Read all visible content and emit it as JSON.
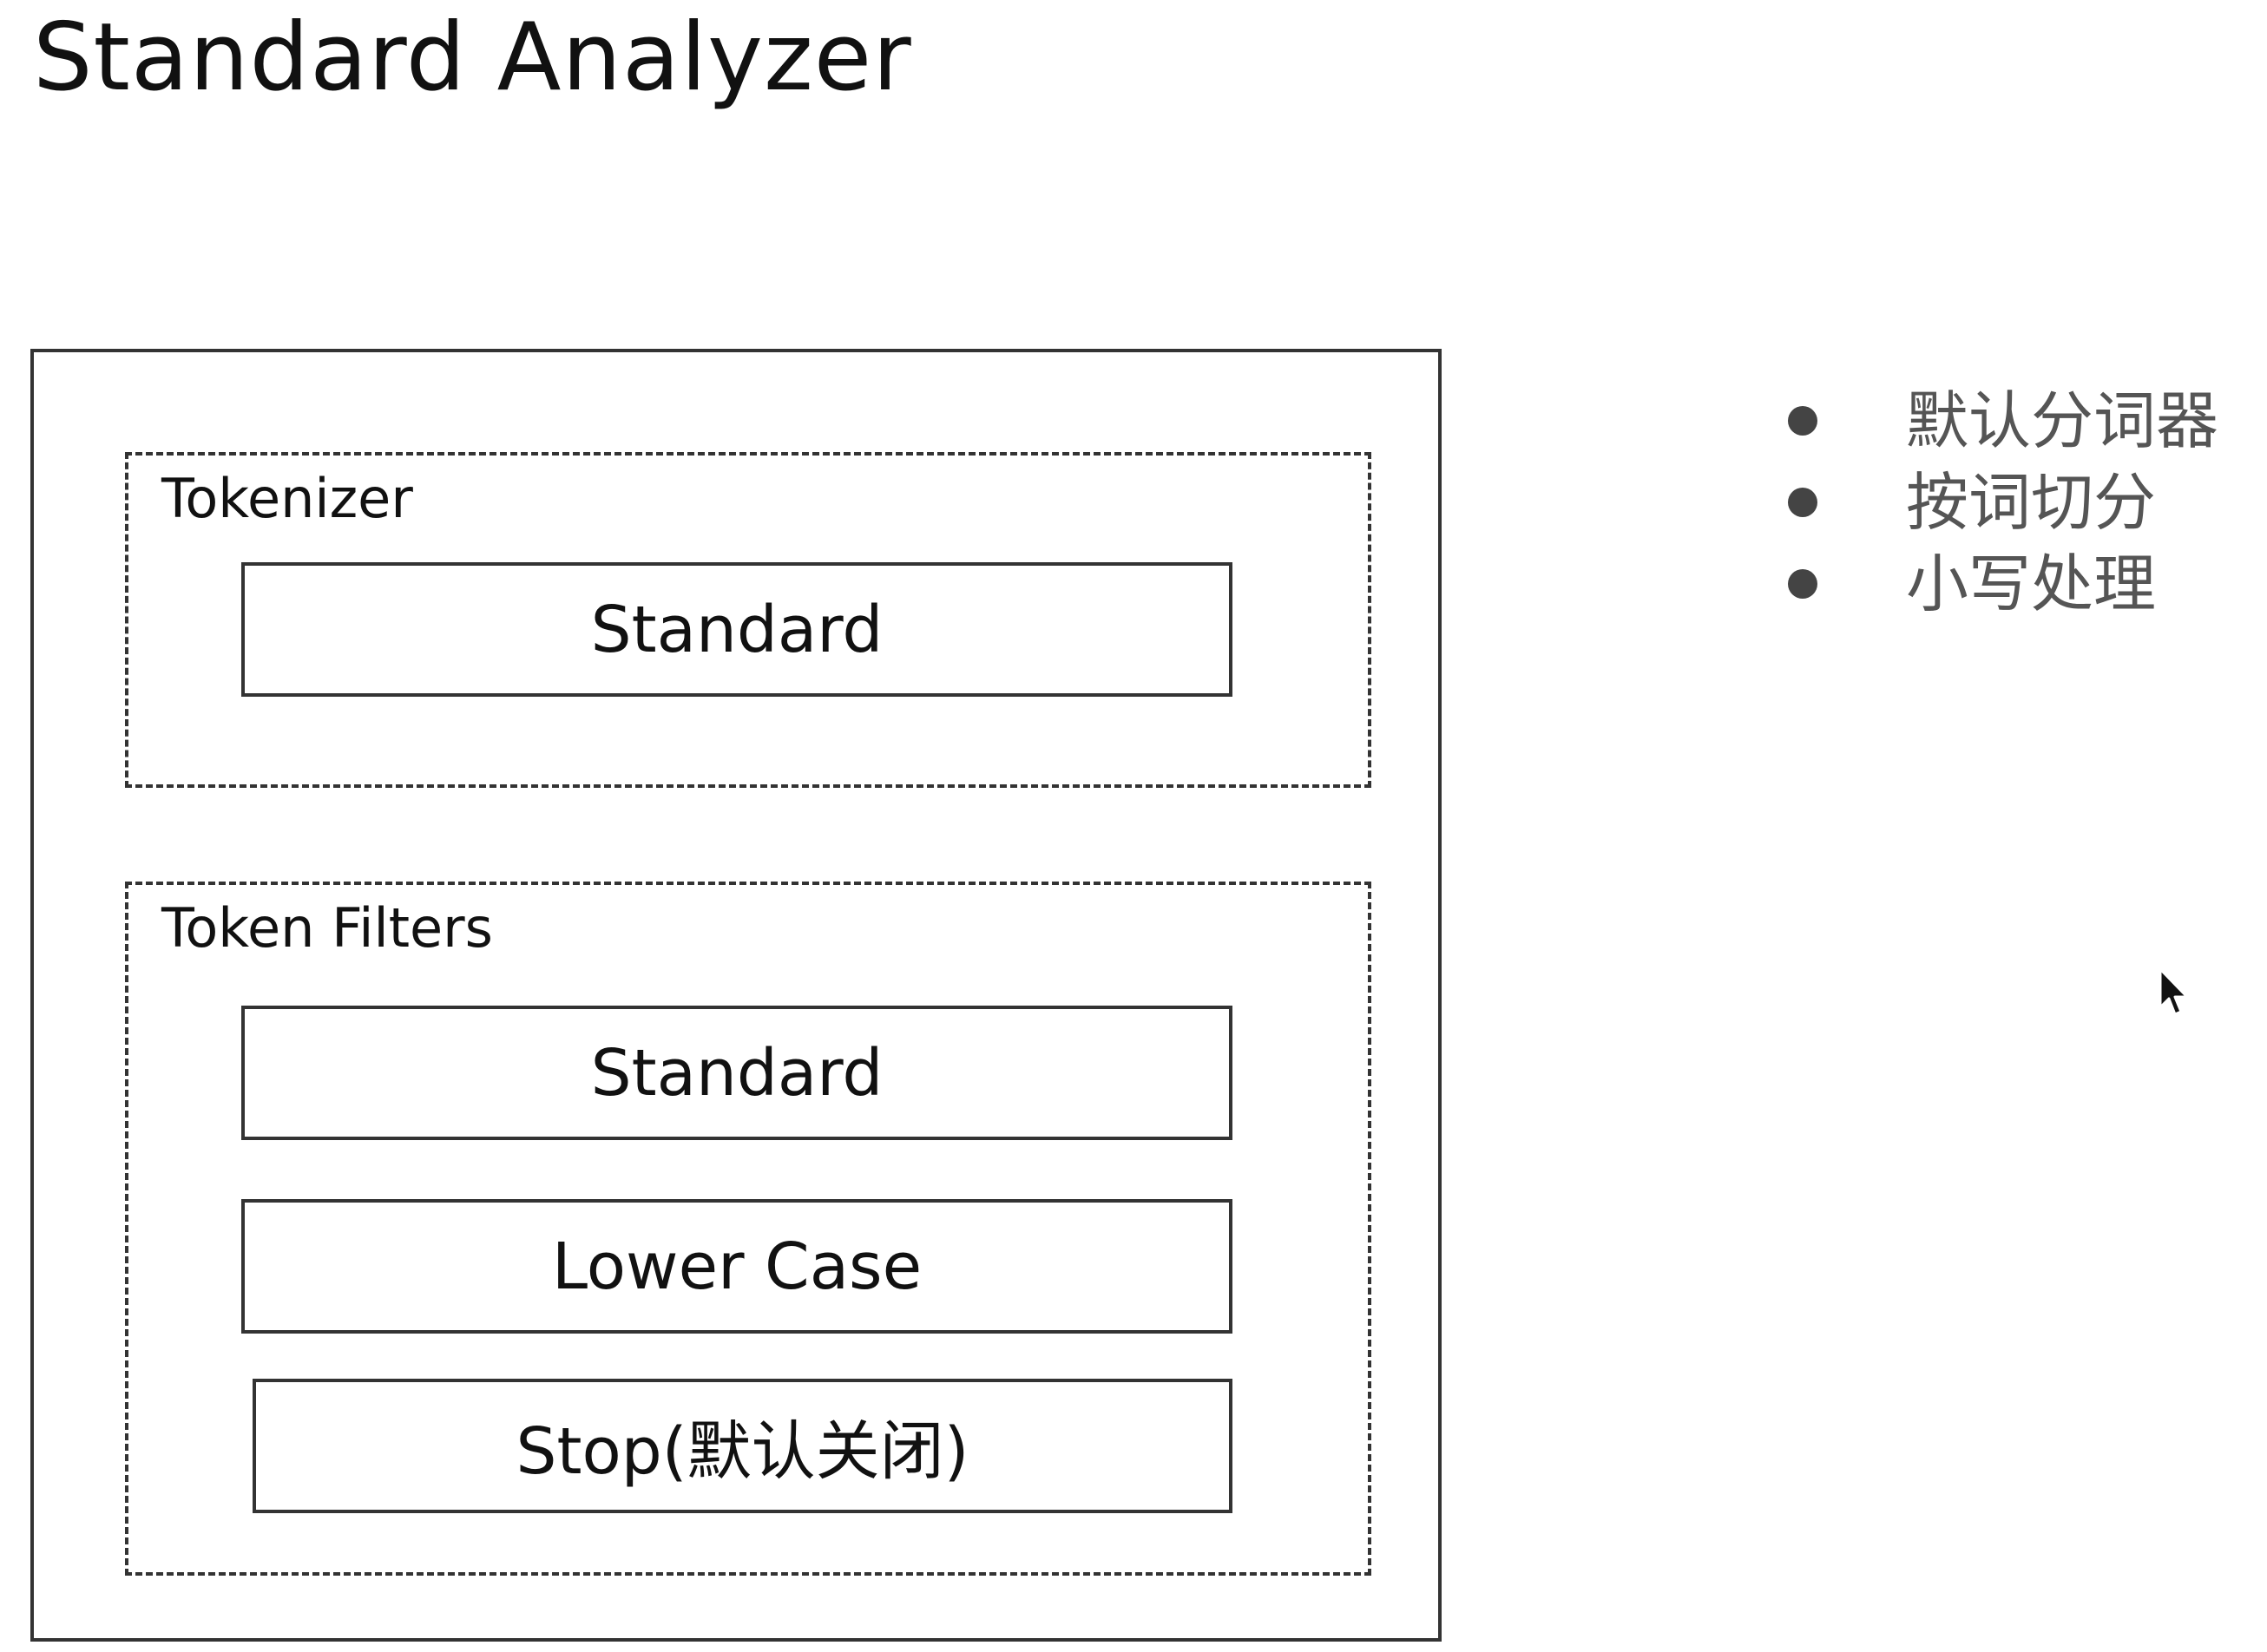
{
  "title": "Standard Analyzer",
  "analyzer": {
    "tokenizer": {
      "label": "Tokenizer",
      "components": [
        "Standard"
      ]
    },
    "token_filters": {
      "label": "Token Filters",
      "components": [
        "Standard",
        "Lower Case",
        "Stop(默认关闭)"
      ]
    }
  },
  "notes": [
    "默认分词器",
    "按词切分",
    "小写处理"
  ],
  "colors": {
    "line": "#333333",
    "text": "#111111",
    "note_text": "#555555",
    "bullet": "#444444"
  },
  "icons": {
    "bullet": "bullet-dot-icon",
    "cursor": "mouse-pointer-icon"
  }
}
